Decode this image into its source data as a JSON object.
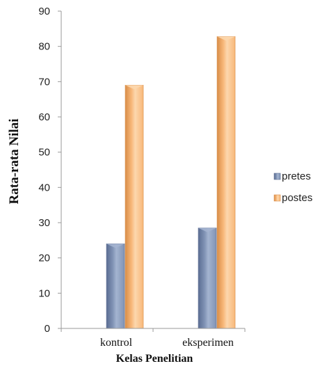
{
  "chart_data": {
    "type": "bar",
    "categories": [
      "kontrol",
      "eksperimen"
    ],
    "series": [
      {
        "name": "pretes",
        "values": [
          24,
          28.5
        ]
      },
      {
        "name": "postes",
        "values": [
          69,
          82.8
        ]
      }
    ],
    "title": "",
    "xlabel": "Kelas Penelitian",
    "ylabel": "Rata-rata Nilai",
    "ylim": [
      0,
      90
    ],
    "yticks": [
      0,
      10,
      20,
      30,
      40,
      50,
      60,
      70,
      80,
      90
    ],
    "grid": false,
    "legend": "right",
    "colors": {
      "pretes": {
        "light": "#a4b4d0",
        "main": "#8093b5",
        "dark": "#5b6d92"
      },
      "postes": {
        "light": "#fcd7ad",
        "main": "#f8b87a",
        "dark": "#d88d48"
      }
    }
  }
}
